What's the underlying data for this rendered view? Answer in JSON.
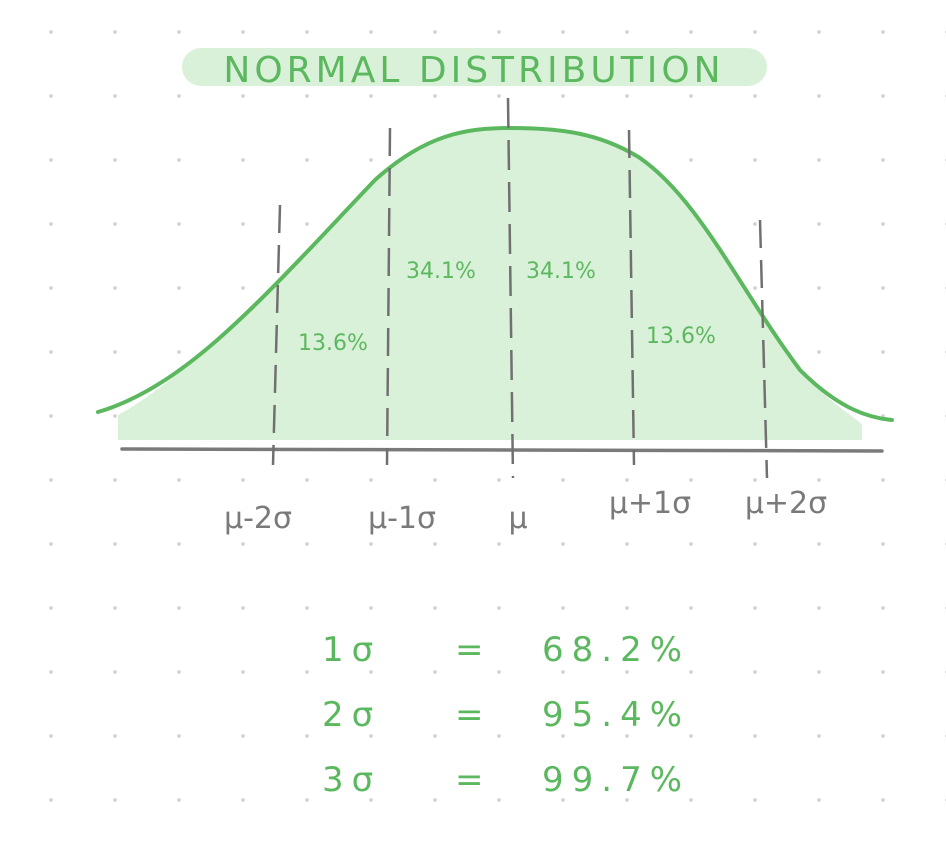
{
  "title": "NORMAL DISTRIBUTION",
  "colors": {
    "accent": "#5cb85f",
    "fill": "#daf1d9",
    "axis": "#7a7a7a",
    "dashes": "#707070"
  },
  "chart_data": {
    "type": "area",
    "title": "NORMAL DISTRIBUTION",
    "x": [
      "μ-2σ",
      "μ-1σ",
      "μ",
      "μ+1σ",
      "μ+2σ"
    ],
    "regions": [
      {
        "from": "μ-2σ",
        "to": "μ-1σ",
        "label": "13.6%",
        "value": 13.6
      },
      {
        "from": "μ-1σ",
        "to": "μ",
        "label": "34.1%",
        "value": 34.1
      },
      {
        "from": "μ",
        "to": "μ+1σ",
        "label": "34.1%",
        "value": 34.1
      },
      {
        "from": "μ+1σ",
        "to": "μ+2σ",
        "label": "13.6%",
        "value": 13.6
      }
    ],
    "rules": [
      {
        "sigma": "1σ",
        "eq": "=",
        "value": "68.2%"
      },
      {
        "sigma": "2σ",
        "eq": "=",
        "value": "95.4%"
      },
      {
        "sigma": "3σ",
        "eq": "=",
        "value": "99.7%"
      }
    ]
  }
}
